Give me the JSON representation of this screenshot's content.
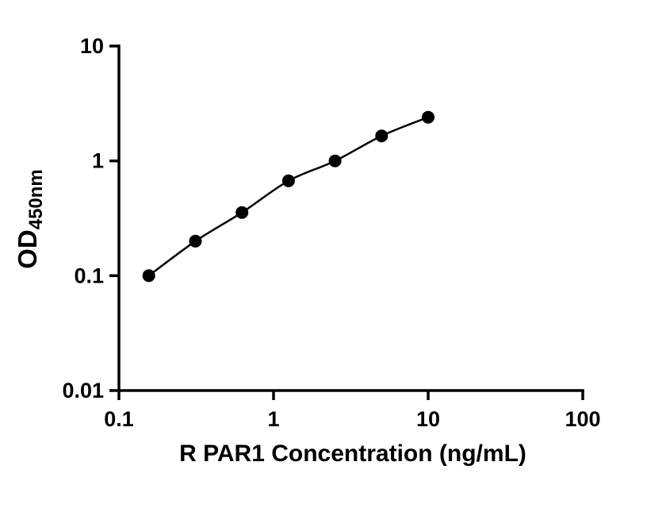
{
  "chart_data": {
    "type": "scatter",
    "title": "",
    "xlabel": "R PAR1 Concentration (ng/mL)",
    "ylabel": "OD",
    "ylabel_subscript": "450nm",
    "x_scale": "log",
    "y_scale": "log",
    "xlim": [
      0.1,
      100
    ],
    "ylim": [
      0.01,
      10
    ],
    "x_ticks": [
      0.1,
      1,
      10,
      100
    ],
    "x_tick_labels": [
      "0.1",
      "1",
      "10",
      "100"
    ],
    "y_ticks": [
      0.01,
      0.1,
      1,
      10
    ],
    "y_tick_labels": [
      "0.01",
      "0.1",
      "1",
      "10"
    ],
    "x": [
      0.156,
      0.3125,
      0.625,
      1.25,
      2.5,
      5,
      10
    ],
    "y": [
      0.1,
      0.2,
      0.355,
      0.67,
      1.0,
      1.65,
      2.4
    ],
    "line": true,
    "grid": false,
    "legend": false,
    "line_color": "#000000",
    "marker_color": "#000000"
  },
  "colors": {
    "background": "#ffffff",
    "axis": "#000000"
  }
}
